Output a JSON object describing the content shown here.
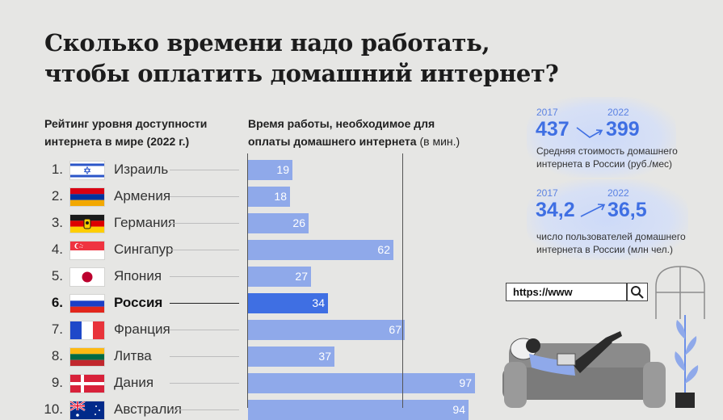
{
  "title": {
    "line1": "Сколько времени надо работать,",
    "line2": "чтобы оплатить домашний интернет?"
  },
  "col_rank": {
    "line1": "Рейтинг уровня доступности",
    "line2": "интернета в мире (2022 г.)"
  },
  "col_time": {
    "line1": "Время работы, необходимое для",
    "line2": "оплаты домашнего интернета",
    "unit": "(в мин.)"
  },
  "colors": {
    "bar": "#8fa9ea",
    "bar_highlight": "#3f6fe3",
    "accent": "#3f6fe3",
    "year": "#5b82e3"
  },
  "chart_data": {
    "type": "bar",
    "orientation": "horizontal",
    "title": "Время работы, необходимое для оплаты домашнего интернета (в мин.)",
    "categories": [
      "Израиль",
      "Армения",
      "Германия",
      "Сингапур",
      "Япония",
      "Россия",
      "Франция",
      "Литва",
      "Дания",
      "Австралия"
    ],
    "ranks": [
      "1.",
      "2.",
      "3.",
      "4.",
      "5.",
      "6.",
      "7.",
      "8.",
      "9.",
      "10."
    ],
    "flags": [
      "israel-flag",
      "armenia-flag",
      "germany-flag",
      "singapore-flag",
      "japan-flag",
      "russia-flag",
      "france-flag",
      "lithuania-flag",
      "denmark-flag",
      "australia-flag"
    ],
    "values": [
      19,
      18,
      26,
      62,
      27,
      34,
      67,
      37,
      97,
      94
    ],
    "highlight": "Россия",
    "xlim": [
      0,
      100
    ],
    "xlabel": "мин.",
    "grid": false
  },
  "stats": {
    "cost": {
      "year_from": "2017",
      "year_to": "2022",
      "value_from": "437",
      "value_to": "399",
      "desc_line1": "Средняя стоимость домашнего",
      "desc_line2": "интернета в России (руб./мес)"
    },
    "users": {
      "year_from": "2017",
      "year_to": "2022",
      "value_from": "34,2",
      "value_to": "36,5",
      "desc_line1": "число пользователей домашнего",
      "desc_line2": "интернета в России (млн чел.)"
    }
  },
  "illustration": {
    "url_text": "https://www",
    "search_icon": "search-icon"
  }
}
